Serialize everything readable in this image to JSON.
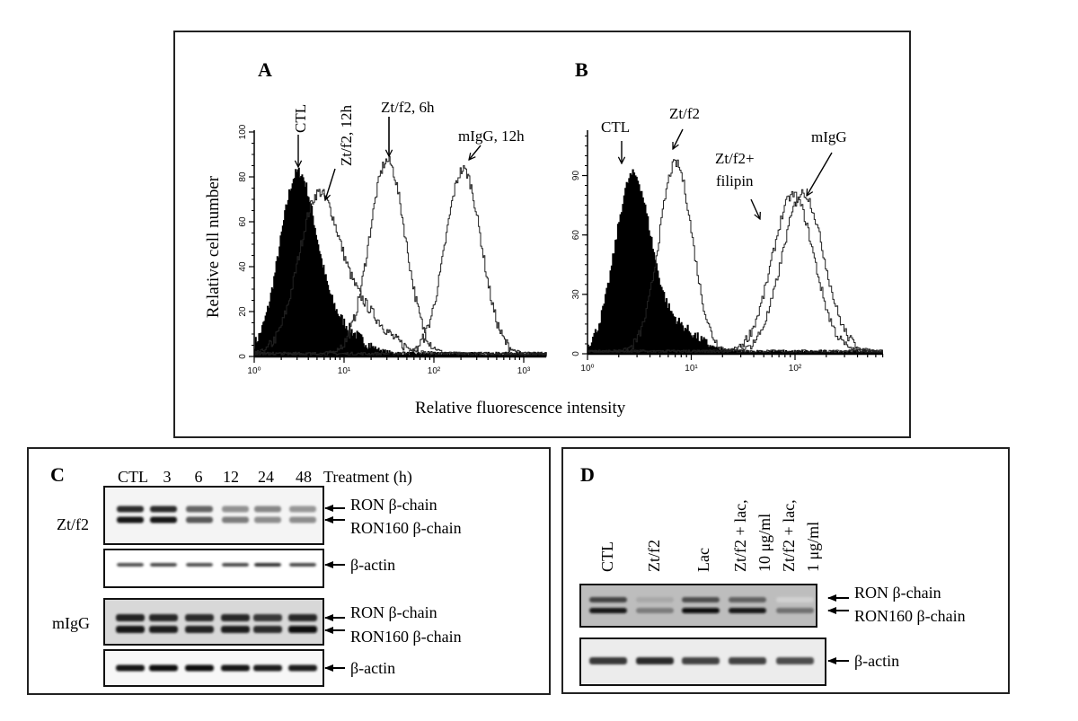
{
  "figure": {
    "panel_labels": {
      "a": "A",
      "b": "B",
      "c": "C",
      "d": "D"
    },
    "shared_xlabel": "Relative fluorescence intensity"
  },
  "chart_data": [
    {
      "panel": "A",
      "type": "histogram",
      "xscale": "log",
      "xlabel": "Relative fluorescence intensity",
      "ylabel": "Relative cell number",
      "xlim": [
        1,
        1800
      ],
      "ylim": [
        0,
        100
      ],
      "xticks": [
        {
          "value": 1,
          "label": "10⁰"
        },
        {
          "value": 10,
          "label": "10¹"
        },
        {
          "value": 100,
          "label": "10²"
        },
        {
          "value": 1000,
          "label": "10³"
        }
      ],
      "yticks": [
        {
          "value": 0,
          "label": "0"
        },
        {
          "value": 20,
          "label": "20"
        },
        {
          "value": 40,
          "label": "40"
        },
        {
          "value": 60,
          "label": "60"
        },
        {
          "value": 80,
          "label": "80"
        },
        {
          "value": 100,
          "label": "100"
        }
      ],
      "series": [
        {
          "name": "CTL",
          "label": "CTL",
          "filled": true,
          "components": [
            {
              "peak": 3,
              "height": 78,
              "spread": 0.2
            },
            {
              "peak": 8,
              "height": 12,
              "spread": 0.25
            }
          ]
        },
        {
          "name": "Zt/f2, 12h",
          "label": "Zt/f2, 12h",
          "filled": false,
          "components": [
            {
              "peak": 5,
              "height": 66,
              "spread": 0.22
            },
            {
              "peak": 14,
              "height": 20,
              "spread": 0.28
            }
          ]
        },
        {
          "name": "Zt/f2, 6h",
          "label": "Zt/f2, 6h",
          "filled": false,
          "components": [
            {
              "peak": 30,
              "height": 86,
              "spread": 0.2
            }
          ]
        },
        {
          "name": "mIgG, 12h",
          "label": "mIgG, 12h",
          "filled": false,
          "components": [
            {
              "peak": 210,
              "height": 82,
              "spread": 0.2
            }
          ]
        }
      ]
    },
    {
      "panel": "B",
      "type": "histogram",
      "xscale": "log",
      "xlabel": "Relative fluorescence intensity",
      "ylabel": "Relative cell number",
      "xlim": [
        1,
        700
      ],
      "ylim": [
        0,
        112
      ],
      "xticks": [
        {
          "value": 1,
          "label": "10⁰"
        },
        {
          "value": 10,
          "label": "10¹"
        },
        {
          "value": 100,
          "label": "10²"
        }
      ],
      "yticks": [
        {
          "value": 0,
          "label": "0"
        },
        {
          "value": 30,
          "label": "30"
        },
        {
          "value": 60,
          "label": "60"
        },
        {
          "value": 90,
          "label": "90"
        }
      ],
      "series": [
        {
          "name": "CTL",
          "label": "CTL",
          "filled": true,
          "components": [
            {
              "peak": 2.7,
              "height": 88,
              "spread": 0.17
            },
            {
              "peak": 7,
              "height": 12,
              "spread": 0.2
            }
          ]
        },
        {
          "name": "Zt/f2",
          "label": "Zt/f2",
          "filled": false,
          "components": [
            {
              "peak": 7,
              "height": 95,
              "spread": 0.16
            }
          ]
        },
        {
          "name": "Zt/f2+filipin",
          "label_lines": [
            "Zt/f2+",
            "filipin"
          ],
          "filled": false,
          "components": [
            {
              "peak": 95,
              "height": 79,
              "spread": 0.2
            }
          ]
        },
        {
          "name": "mIgG",
          "label": "mIgG",
          "filled": false,
          "components": [
            {
              "peak": 118,
              "height": 80,
              "spread": 0.2
            }
          ]
        }
      ]
    }
  ],
  "blots": {
    "c": {
      "lanes": [
        "CTL",
        "3",
        "6",
        "12",
        "24",
        "48"
      ],
      "lanes_header": "Treatment (h)",
      "rows": [
        {
          "label": "Zt/f2",
          "kind": "ron",
          "bands": [
            {
              "name": "RON β-chain",
              "intensity": [
                0.85,
                0.85,
                0.6,
                0.4,
                0.45,
                0.38
              ]
            },
            {
              "name": "RON160 β-chain",
              "intensity": [
                0.95,
                0.95,
                0.65,
                0.5,
                0.42,
                0.42
              ]
            }
          ]
        },
        {
          "label": "",
          "kind": "actin",
          "bands": [
            {
              "name": "β-actin",
              "intensity": [
                0.7,
                0.72,
                0.7,
                0.72,
                0.82,
                0.72
              ]
            }
          ]
        },
        {
          "label": "mIgG",
          "kind": "ron",
          "bands": [
            {
              "name": "RON β-chain",
              "intensity": [
                0.9,
                0.88,
                0.86,
                0.88,
                0.8,
                0.88
              ]
            },
            {
              "name": "RON160 β-chain",
              "intensity": [
                0.95,
                0.92,
                0.9,
                0.92,
                0.85,
                0.97
              ]
            }
          ]
        },
        {
          "label": "",
          "kind": "actin",
          "bands": [
            {
              "name": "β-actin",
              "intensity": [
                0.95,
                0.97,
                0.98,
                0.95,
                0.92,
                0.92
              ]
            }
          ]
        }
      ]
    },
    "d": {
      "lanes": [
        "CTL",
        "Zt/f2",
        "Lac",
        [
          "Zt/f2 + lac,",
          "10 μg/ml"
        ],
        [
          "Zt/f2 + lac,",
          "1 μg/ml"
        ]
      ],
      "rows": [
        {
          "kind": "ron",
          "bands": [
            {
              "name": "RON β-chain",
              "intensity": [
                0.75,
                0.3,
                0.7,
                0.62,
                0.12
              ]
            },
            {
              "name": "RON160 β-chain",
              "intensity": [
                0.95,
                0.5,
                1.0,
                0.95,
                0.55
              ]
            }
          ]
        },
        {
          "kind": "actin",
          "bands": [
            {
              "name": "β-actin",
              "intensity": [
                0.8,
                0.85,
                0.75,
                0.75,
                0.7
              ]
            }
          ]
        }
      ]
    }
  }
}
